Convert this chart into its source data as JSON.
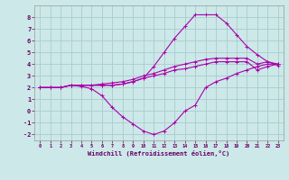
{
  "title": "",
  "xlabel": "Windchill (Refroidissement éolien,°C)",
  "background_color": "#cce8e8",
  "grid_color": "#aacccc",
  "line_color": "#aa00aa",
  "x": [
    0,
    1,
    2,
    3,
    4,
    5,
    6,
    7,
    8,
    9,
    10,
    11,
    12,
    13,
    14,
    15,
    16,
    17,
    18,
    19,
    20,
    21,
    22,
    23
  ],
  "line1": [
    2.0,
    2.0,
    2.0,
    2.2,
    2.1,
    1.9,
    1.3,
    0.3,
    -0.5,
    -1.1,
    -1.7,
    -2.0,
    -1.7,
    -1.0,
    0.0,
    0.5,
    2.0,
    2.5,
    2.8,
    3.2,
    3.5,
    3.8,
    4.0,
    4.0
  ],
  "line2": [
    2.0,
    2.0,
    2.0,
    2.2,
    2.2,
    2.2,
    2.2,
    2.2,
    2.3,
    2.5,
    2.8,
    3.8,
    5.0,
    6.2,
    7.2,
    8.2,
    8.2,
    8.2,
    7.5,
    6.5,
    5.5,
    4.8,
    4.2,
    3.9
  ],
  "line3": [
    2.0,
    2.0,
    2.0,
    2.2,
    2.2,
    2.2,
    2.2,
    2.2,
    2.3,
    2.5,
    2.8,
    3.0,
    3.2,
    3.5,
    3.6,
    3.8,
    4.0,
    4.2,
    4.2,
    4.2,
    4.2,
    3.5,
    3.8,
    4.0
  ],
  "line4": [
    2.0,
    2.0,
    2.0,
    2.2,
    2.2,
    2.2,
    2.3,
    2.4,
    2.5,
    2.7,
    3.0,
    3.2,
    3.5,
    3.8,
    4.0,
    4.2,
    4.4,
    4.5,
    4.5,
    4.5,
    4.5,
    4.0,
    4.2,
    4.0
  ],
  "ylim": [
    -2.5,
    9.0
  ],
  "yticks": [
    -2,
    -1,
    0,
    1,
    2,
    3,
    4,
    5,
    6,
    7,
    8
  ],
  "xlim": [
    -0.5,
    23.5
  ],
  "xticks": [
    0,
    1,
    2,
    3,
    4,
    5,
    6,
    7,
    8,
    9,
    10,
    11,
    12,
    13,
    14,
    15,
    16,
    17,
    18,
    19,
    20,
    21,
    22,
    23
  ]
}
